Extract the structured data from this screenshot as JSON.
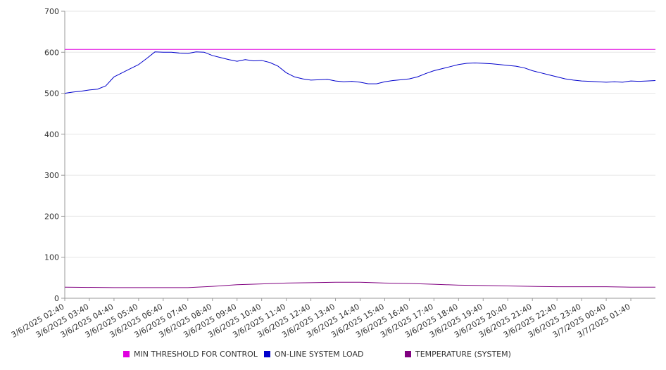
{
  "chart_data": {
    "type": "line",
    "title": "",
    "xlabel": "",
    "ylabel": "",
    "ylim": [
      0,
      700
    ],
    "y_ticks": [
      0,
      100,
      200,
      300,
      400,
      500,
      600,
      700
    ],
    "grid": true,
    "legend_position": "bottom",
    "x_start": "3/6/2025 02:40",
    "x_end": "3/7/2025 02:40",
    "x_tick_labels": [
      "3/6/2025 02:40",
      "3/6/2025 03:40",
      "3/6/2025 04:40",
      "3/6/2025 05:40",
      "3/6/2025 06:40",
      "3/6/2025 07:40",
      "3/6/2025 08:40",
      "3/6/2025 09:40",
      "3/6/2025 10:40",
      "3/6/2025 11:40",
      "3/6/2025 12:40",
      "3/6/2025 13:40",
      "3/6/2025 14:40",
      "3/6/2025 15:40",
      "3/6/2025 16:40",
      "3/6/2025 17:40",
      "3/6/2025 18:40",
      "3/6/2025 19:40",
      "3/6/2025 20:40",
      "3/6/2025 21:40",
      "3/6/2025 22:40",
      "3/6/2025 23:40",
      "3/7/2025 00:40",
      "3/7/2025 01:40"
    ],
    "series": [
      {
        "name": "MIN THRESHOLD FOR CONTROL",
        "color": "#e000e0",
        "points": [
          {
            "x": "3/6/2025 02:40",
            "y": 607
          },
          {
            "x": "3/7/2025 02:40",
            "y": 607
          }
        ]
      },
      {
        "name": "ON-LINE SYSTEM LOAD",
        "color": "#0000cc",
        "points": [
          {
            "x": "3/6/2025 02:40",
            "y": 500
          },
          {
            "x": "3/6/2025 03:00",
            "y": 503
          },
          {
            "x": "3/6/2025 03:20",
            "y": 505
          },
          {
            "x": "3/6/2025 03:40",
            "y": 508
          },
          {
            "x": "3/6/2025 04:00",
            "y": 510
          },
          {
            "x": "3/6/2025 04:20",
            "y": 518
          },
          {
            "x": "3/6/2025 04:40",
            "y": 540
          },
          {
            "x": "3/6/2025 05:00",
            "y": 550
          },
          {
            "x": "3/6/2025 05:20",
            "y": 560
          },
          {
            "x": "3/6/2025 05:40",
            "y": 570
          },
          {
            "x": "3/6/2025 06:00",
            "y": 585
          },
          {
            "x": "3/6/2025 06:20",
            "y": 601
          },
          {
            "x": "3/6/2025 06:40",
            "y": 600
          },
          {
            "x": "3/6/2025 07:00",
            "y": 600
          },
          {
            "x": "3/6/2025 07:20",
            "y": 598
          },
          {
            "x": "3/6/2025 07:40",
            "y": 597
          },
          {
            "x": "3/6/2025 08:00",
            "y": 601
          },
          {
            "x": "3/6/2025 08:20",
            "y": 600
          },
          {
            "x": "3/6/2025 08:40",
            "y": 592
          },
          {
            "x": "3/6/2025 09:00",
            "y": 587
          },
          {
            "x": "3/6/2025 09:20",
            "y": 582
          },
          {
            "x": "3/6/2025 09:40",
            "y": 578
          },
          {
            "x": "3/6/2025 10:00",
            "y": 582
          },
          {
            "x": "3/6/2025 10:20",
            "y": 579
          },
          {
            "x": "3/6/2025 10:40",
            "y": 580
          },
          {
            "x": "3/6/2025 11:00",
            "y": 575
          },
          {
            "x": "3/6/2025 11:20",
            "y": 566
          },
          {
            "x": "3/6/2025 11:40",
            "y": 550
          },
          {
            "x": "3/6/2025 12:00",
            "y": 540
          },
          {
            "x": "3/6/2025 12:20",
            "y": 535
          },
          {
            "x": "3/6/2025 12:40",
            "y": 532
          },
          {
            "x": "3/6/2025 13:00",
            "y": 533
          },
          {
            "x": "3/6/2025 13:20",
            "y": 534
          },
          {
            "x": "3/6/2025 13:40",
            "y": 530
          },
          {
            "x": "3/6/2025 14:00",
            "y": 528
          },
          {
            "x": "3/6/2025 14:20",
            "y": 529
          },
          {
            "x": "3/6/2025 14:40",
            "y": 527
          },
          {
            "x": "3/6/2025 15:00",
            "y": 523
          },
          {
            "x": "3/6/2025 15:20",
            "y": 523
          },
          {
            "x": "3/6/2025 15:40",
            "y": 528
          },
          {
            "x": "3/6/2025 16:00",
            "y": 531
          },
          {
            "x": "3/6/2025 16:20",
            "y": 533
          },
          {
            "x": "3/6/2025 16:40",
            "y": 535
          },
          {
            "x": "3/6/2025 17:00",
            "y": 540
          },
          {
            "x": "3/6/2025 17:20",
            "y": 548
          },
          {
            "x": "3/6/2025 17:40",
            "y": 555
          },
          {
            "x": "3/6/2025 18:00",
            "y": 560
          },
          {
            "x": "3/6/2025 18:20",
            "y": 565
          },
          {
            "x": "3/6/2025 18:40",
            "y": 570
          },
          {
            "x": "3/6/2025 19:00",
            "y": 573
          },
          {
            "x": "3/6/2025 19:20",
            "y": 574
          },
          {
            "x": "3/6/2025 19:40",
            "y": 573
          },
          {
            "x": "3/6/2025 20:00",
            "y": 572
          },
          {
            "x": "3/6/2025 20:20",
            "y": 570
          },
          {
            "x": "3/6/2025 20:40",
            "y": 568
          },
          {
            "x": "3/6/2025 21:00",
            "y": 566
          },
          {
            "x": "3/6/2025 21:20",
            "y": 562
          },
          {
            "x": "3/6/2025 21:40",
            "y": 555
          },
          {
            "x": "3/6/2025 22:00",
            "y": 550
          },
          {
            "x": "3/6/2025 22:20",
            "y": 545
          },
          {
            "x": "3/6/2025 22:40",
            "y": 540
          },
          {
            "x": "3/6/2025 23:00",
            "y": 535
          },
          {
            "x": "3/6/2025 23:20",
            "y": 532
          },
          {
            "x": "3/6/2025 23:40",
            "y": 530
          },
          {
            "x": "3/7/2025 00:00",
            "y": 529
          },
          {
            "x": "3/7/2025 00:20",
            "y": 528
          },
          {
            "x": "3/7/2025 00:40",
            "y": 527
          },
          {
            "x": "3/7/2025 01:00",
            "y": 528
          },
          {
            "x": "3/7/2025 01:20",
            "y": 527
          },
          {
            "x": "3/7/2025 01:40",
            "y": 530
          },
          {
            "x": "3/7/2025 02:00",
            "y": 529
          },
          {
            "x": "3/7/2025 02:20",
            "y": 530
          },
          {
            "x": "3/7/2025 02:40",
            "y": 531
          }
        ]
      },
      {
        "name": "TEMPERATURE (SYSTEM)",
        "color": "#800080",
        "points": [
          {
            "x": "3/6/2025 02:40",
            "y": 27
          },
          {
            "x": "3/6/2025 04:40",
            "y": 26
          },
          {
            "x": "3/6/2025 07:40",
            "y": 26
          },
          {
            "x": "3/6/2025 08:40",
            "y": 29
          },
          {
            "x": "3/6/2025 09:40",
            "y": 33
          },
          {
            "x": "3/6/2025 10:40",
            "y": 35
          },
          {
            "x": "3/6/2025 11:40",
            "y": 37
          },
          {
            "x": "3/6/2025 12:40",
            "y": 38
          },
          {
            "x": "3/6/2025 13:40",
            "y": 39
          },
          {
            "x": "3/6/2025 14:40",
            "y": 39
          },
          {
            "x": "3/6/2025 15:40",
            "y": 37
          },
          {
            "x": "3/6/2025 16:40",
            "y": 36
          },
          {
            "x": "3/6/2025 17:40",
            "y": 34
          },
          {
            "x": "3/6/2025 18:40",
            "y": 32
          },
          {
            "x": "3/6/2025 19:40",
            "y": 31
          },
          {
            "x": "3/6/2025 20:40",
            "y": 30
          },
          {
            "x": "3/6/2025 21:40",
            "y": 29
          },
          {
            "x": "3/6/2025 22:40",
            "y": 28
          },
          {
            "x": "3/6/2025 23:40",
            "y": 28
          },
          {
            "x": "3/7/2025 00:40",
            "y": 28
          },
          {
            "x": "3/7/2025 01:40",
            "y": 27
          },
          {
            "x": "3/7/2025 02:40",
            "y": 27
          }
        ]
      }
    ]
  }
}
